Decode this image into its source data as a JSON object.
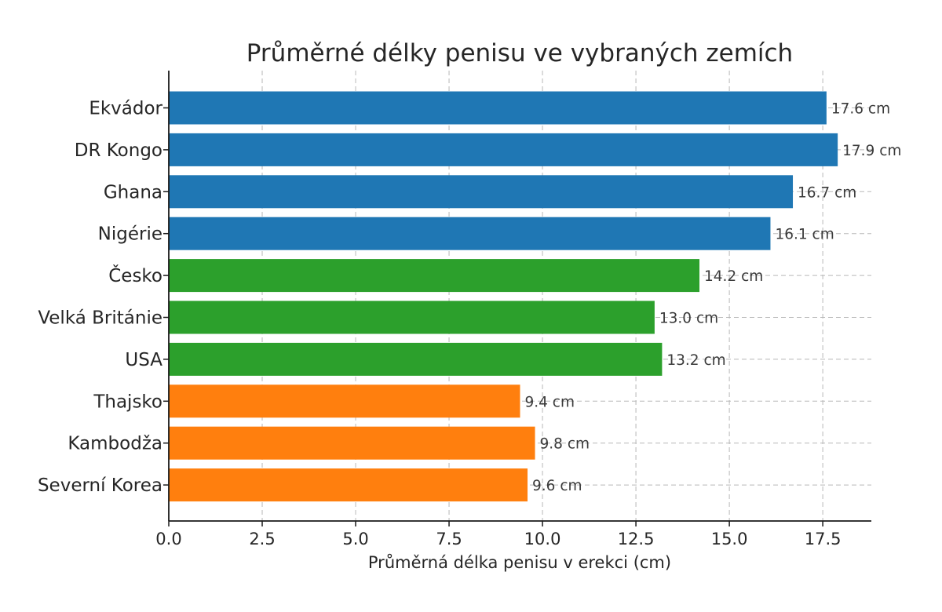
{
  "chart_data": {
    "type": "bar",
    "orientation": "horizontal",
    "title": "Průměrné délky penisu ve vybraných zemích",
    "xlabel": "Průměrná délka penisu v erekci (cm)",
    "ylabel": "",
    "xlim": [
      0,
      18.8
    ],
    "xticks": [
      "0.0",
      "2.5",
      "5.0",
      "7.5",
      "10.0",
      "12.5",
      "15.0",
      "17.5"
    ],
    "grid": true,
    "categories": [
      "Ekvádor",
      "DR Kongo",
      "Ghana",
      "Nigérie",
      "Česko",
      "Velká Británie",
      "USA",
      "Thajsko",
      "Kambodža",
      "Severní Korea"
    ],
    "values": [
      17.6,
      17.9,
      16.7,
      16.1,
      14.2,
      13.0,
      13.2,
      9.4,
      9.8,
      9.6
    ],
    "value_labels": [
      "17.6 cm",
      "17.9 cm",
      "16.7 cm",
      "16.1 cm",
      "14.2 cm",
      "13.0 cm",
      "13.2 cm",
      "9.4 cm",
      "9.8 cm",
      "9.6 cm"
    ],
    "colors": [
      "#1f77b4",
      "#1f77b4",
      "#1f77b4",
      "#1f77b4",
      "#2ca02c",
      "#2ca02c",
      "#2ca02c",
      "#ff7f0e",
      "#ff7f0e",
      "#ff7f0e"
    ]
  }
}
